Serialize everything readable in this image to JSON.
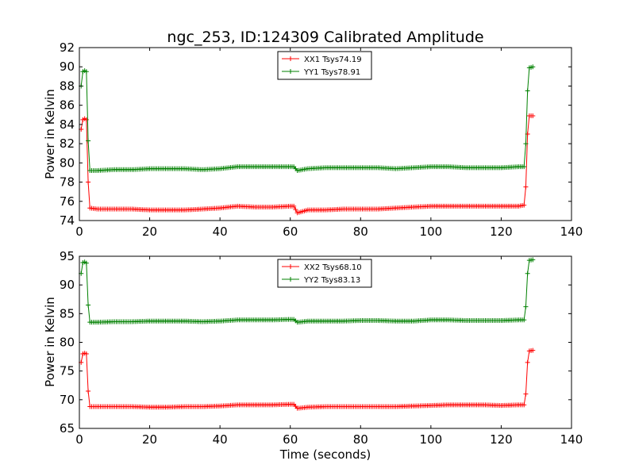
{
  "figure": {
    "title": "ngc_253, ID:124309 Calibrated Amplitude"
  },
  "chart_data": [
    {
      "type": "line",
      "title": "ngc_253, ID:124309 Calibrated Amplitude",
      "xlabel": "",
      "ylabel": "Power in Kelvin",
      "xlim": [
        0,
        140
      ],
      "ylim": [
        74,
        92
      ],
      "xticks": [
        0,
        20,
        40,
        60,
        80,
        100,
        120,
        140
      ],
      "yticks": [
        74,
        76,
        78,
        80,
        82,
        84,
        86,
        88,
        90,
        92
      ],
      "grid": false,
      "legend_position": "top-center",
      "marker": "+",
      "series": [
        {
          "name": "XX1 Tsys74.19",
          "color": "#ff0000",
          "x": [
            0.5,
            1,
            1.5,
            2,
            2.5,
            3,
            5,
            10,
            15,
            20,
            25,
            30,
            35,
            40,
            45,
            50,
            55,
            60,
            61,
            62,
            65,
            70,
            75,
            80,
            85,
            90,
            95,
            100,
            105,
            110,
            115,
            120,
            125,
            126.5,
            127,
            127.5,
            128,
            129
          ],
          "y": [
            83.5,
            84.5,
            84.6,
            84.5,
            78,
            75.3,
            75.2,
            75.2,
            75.2,
            75.1,
            75.1,
            75.1,
            75.2,
            75.3,
            75.5,
            75.4,
            75.4,
            75.5,
            75.5,
            74.8,
            75.1,
            75.1,
            75.2,
            75.2,
            75.2,
            75.3,
            75.4,
            75.5,
            75.5,
            75.5,
            75.5,
            75.5,
            75.5,
            75.6,
            77.5,
            83,
            84.9,
            84.9
          ]
        },
        {
          "name": "YY1 Tsys78.91",
          "color": "#008000",
          "x": [
            0.5,
            1,
            1.5,
            2,
            2.5,
            3,
            5,
            10,
            15,
            20,
            25,
            30,
            35,
            40,
            45,
            50,
            55,
            60,
            61,
            62,
            65,
            70,
            75,
            80,
            85,
            90,
            95,
            100,
            105,
            110,
            115,
            120,
            125,
            126.5,
            127,
            127.5,
            128,
            129
          ],
          "y": [
            88,
            89.5,
            89.6,
            89.5,
            82.3,
            79.2,
            79.2,
            79.3,
            79.3,
            79.4,
            79.4,
            79.4,
            79.3,
            79.4,
            79.6,
            79.6,
            79.6,
            79.6,
            79.6,
            79.2,
            79.4,
            79.5,
            79.5,
            79.5,
            79.5,
            79.4,
            79.5,
            79.6,
            79.6,
            79.5,
            79.5,
            79.5,
            79.6,
            79.6,
            82,
            87.5,
            89.9,
            90
          ]
        }
      ]
    },
    {
      "type": "line",
      "title": "",
      "xlabel": "Time (seconds)",
      "ylabel": "Power in Kelvin",
      "xlim": [
        0,
        140
      ],
      "ylim": [
        65,
        95
      ],
      "xticks": [
        0,
        20,
        40,
        60,
        80,
        100,
        120,
        140
      ],
      "yticks": [
        65,
        70,
        75,
        80,
        85,
        90,
        95
      ],
      "grid": false,
      "legend_position": "top-center",
      "marker": "+",
      "series": [
        {
          "name": "XX2 Tsys68.10",
          "color": "#ff0000",
          "x": [
            0.5,
            1,
            1.5,
            2,
            2.5,
            3,
            5,
            10,
            15,
            20,
            25,
            30,
            35,
            40,
            45,
            50,
            55,
            60,
            61,
            62,
            65,
            70,
            75,
            80,
            85,
            90,
            95,
            100,
            105,
            110,
            115,
            120,
            125,
            126.5,
            127,
            127.5,
            128,
            129
          ],
          "y": [
            76.5,
            78,
            78.1,
            78,
            71.5,
            68.8,
            68.8,
            68.8,
            68.8,
            68.7,
            68.7,
            68.8,
            68.8,
            68.9,
            69.1,
            69.1,
            69.1,
            69.2,
            69.2,
            68.5,
            68.7,
            68.8,
            68.8,
            68.8,
            68.8,
            68.8,
            68.9,
            69.0,
            69.1,
            69.1,
            69.1,
            69.0,
            69.1,
            69.1,
            71.0,
            76.5,
            78.5,
            78.6
          ]
        },
        {
          "name": "YY2 Tsys83.13",
          "color": "#008000",
          "x": [
            0.5,
            1,
            1.5,
            2,
            2.5,
            3,
            5,
            10,
            15,
            20,
            25,
            30,
            35,
            40,
            45,
            50,
            55,
            60,
            61,
            62,
            65,
            70,
            75,
            80,
            85,
            90,
            95,
            100,
            105,
            110,
            115,
            120,
            125,
            126.5,
            127,
            127.5,
            128,
            129
          ],
          "y": [
            92,
            93.9,
            94.0,
            93.8,
            86.5,
            83.5,
            83.5,
            83.6,
            83.6,
            83.7,
            83.7,
            83.7,
            83.6,
            83.7,
            83.9,
            83.9,
            83.9,
            84.0,
            84.0,
            83.5,
            83.7,
            83.7,
            83.7,
            83.8,
            83.8,
            83.7,
            83.7,
            83.9,
            83.9,
            83.8,
            83.8,
            83.8,
            83.9,
            83.9,
            86.2,
            92,
            94.3,
            94.4
          ]
        }
      ]
    }
  ]
}
